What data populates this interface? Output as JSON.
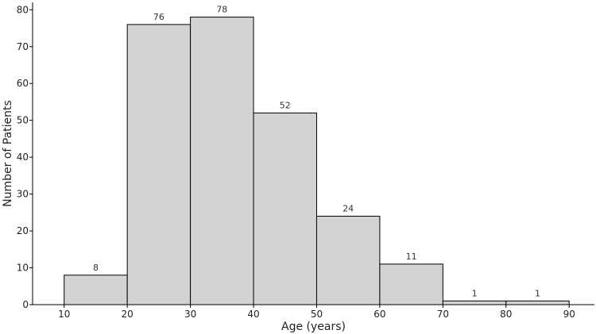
{
  "chart_data": {
    "type": "bar",
    "histogram": true,
    "bins": [
      [
        10,
        20
      ],
      [
        20,
        30
      ],
      [
        30,
        40
      ],
      [
        40,
        50
      ],
      [
        50,
        60
      ],
      [
        60,
        70
      ],
      [
        70,
        80
      ],
      [
        80,
        90
      ]
    ],
    "values": [
      8,
      76,
      78,
      52,
      24,
      11,
      1,
      1
    ],
    "data_labels": [
      "8",
      "76",
      "78",
      "52",
      "24",
      "11",
      "1",
      "1"
    ],
    "xlabel": "Age (years)",
    "ylabel": "Number of Patients",
    "xlim": [
      5,
      94
    ],
    "ylim": [
      0,
      82
    ],
    "xticks": [
      10,
      20,
      30,
      40,
      50,
      60,
      70,
      80,
      90
    ],
    "yticks": [
      0,
      10,
      20,
      30,
      40,
      50,
      60,
      70,
      80
    ],
    "grid": false,
    "bar_color": "#d3d3d3",
    "edge_color": "#000000"
  }
}
